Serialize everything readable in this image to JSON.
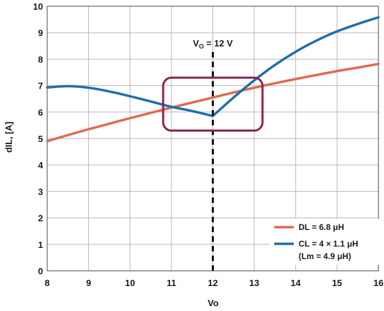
{
  "chart_data": {
    "type": "line",
    "xlabel": "Vo",
    "ylabel": "dIL, [A]",
    "xlim": [
      8,
      16
    ],
    "ylim": [
      0,
      10
    ],
    "x_ticks": [
      "8",
      "9",
      "10",
      "11",
      "12",
      "13",
      "14",
      "15",
      "16"
    ],
    "y_ticks": [
      "0",
      "1",
      "2",
      "3",
      "4",
      "5",
      "6",
      "7",
      "8",
      "9",
      "10"
    ],
    "grid": true,
    "legend_position": "bottom-right",
    "colors": {
      "DL": "#e06a50",
      "CL": "#1f6fa8",
      "marker": "#111111",
      "highlight_box": "#8b2252"
    },
    "series": [
      {
        "name": "DL = 6.8 μH",
        "color": "#e06a50",
        "x": [
          8,
          8.5,
          9,
          9.5,
          10,
          10.5,
          11,
          11.5,
          12,
          12.5,
          13,
          13.5,
          14,
          14.5,
          15,
          15.5,
          16
        ],
        "y": [
          4.9,
          5.13,
          5.35,
          5.56,
          5.77,
          5.97,
          6.17,
          6.36,
          6.55,
          6.74,
          6.92,
          7.09,
          7.25,
          7.4,
          7.55,
          7.68,
          7.82
        ]
      },
      {
        "name": "CL = 4 × 1.1 μH",
        "name_line2": "(Lm = 4.9 μH)",
        "color": "#1f6fa8",
        "x": [
          8,
          8.5,
          9,
          9.5,
          10,
          10.5,
          11,
          11.5,
          12,
          12.5,
          13,
          13.5,
          14,
          14.5,
          15,
          15.5,
          16
        ],
        "y": [
          6.93,
          6.98,
          6.92,
          6.78,
          6.6,
          6.4,
          6.2,
          6.04,
          5.85,
          6.55,
          7.2,
          7.78,
          8.28,
          8.7,
          9.05,
          9.33,
          9.58
        ]
      }
    ],
    "annotations": {
      "vline_x": 12,
      "vline_label_main": "V",
      "vline_label_sub": "O",
      "vline_label_rest": " = 12 V",
      "highlight_box": {
        "x_range": [
          10.8,
          13.2
        ],
        "y_range": [
          5.3,
          7.3
        ]
      }
    }
  }
}
